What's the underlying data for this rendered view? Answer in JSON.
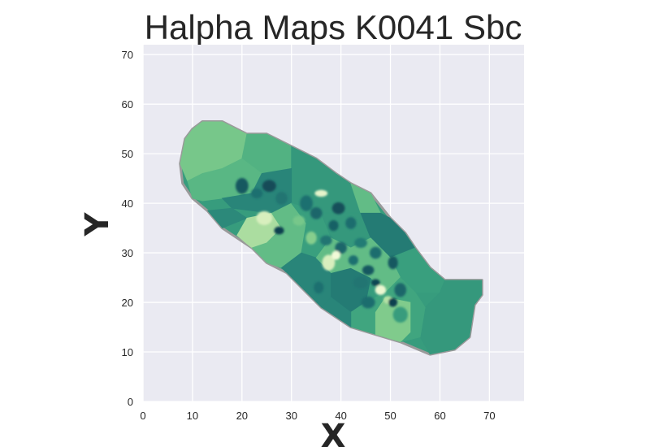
{
  "chart_data": {
    "type": "heatmap",
    "title": "Halpha Maps K0041 Sbc",
    "xlabel": "X",
    "ylabel": "Y",
    "xlim": [
      0,
      77
    ],
    "ylim": [
      0,
      72
    ],
    "xticks": [
      0,
      10,
      20,
      30,
      40,
      50,
      60,
      70
    ],
    "yticks": [
      0,
      10,
      20,
      30,
      40,
      50,
      60,
      70
    ],
    "grid": true,
    "colormap": "YlGn-like (light yellow-green to dark teal)",
    "colors": {
      "background": "#eaeaf2",
      "grid": "#ffffff",
      "outline": "#9a9a9a",
      "scale": [
        "#ffffe5",
        "#d1ecb6",
        "#8ad08e",
        "#5fbb85",
        "#3aa17e",
        "#2a8679",
        "#1d6e6f",
        "#0f3f4f"
      ]
    },
    "galaxy_outline": [
      [
        7.5,
        48
      ],
      [
        8.5,
        53
      ],
      [
        10,
        55
      ],
      [
        12,
        56.5
      ],
      [
        16,
        56.5
      ],
      [
        19,
        55
      ],
      [
        21,
        54
      ],
      [
        25,
        54
      ],
      [
        30,
        51.5
      ],
      [
        35,
        49
      ],
      [
        39,
        46
      ],
      [
        42,
        44
      ],
      [
        46,
        42
      ],
      [
        50,
        37
      ],
      [
        53,
        34
      ],
      [
        55,
        31
      ],
      [
        58,
        27
      ],
      [
        61,
        24.5
      ],
      [
        68.5,
        24.5
      ],
      [
        68.5,
        21.5
      ],
      [
        67,
        19.5
      ],
      [
        66,
        13
      ],
      [
        63,
        10.5
      ],
      [
        58,
        9.5
      ],
      [
        52,
        12
      ],
      [
        47,
        13.5
      ],
      [
        42,
        15
      ],
      [
        36,
        19
      ],
      [
        33,
        22
      ],
      [
        29,
        26
      ],
      [
        25,
        28
      ],
      [
        22,
        31
      ],
      [
        16,
        35
      ],
      [
        13,
        38.5
      ],
      [
        10,
        41
      ],
      [
        8,
        44
      ]
    ],
    "regions": [
      {
        "value": 0.35,
        "points": [
          [
            7.5,
            48
          ],
          [
            8.5,
            53
          ],
          [
            10,
            55
          ],
          [
            12,
            56.5
          ],
          [
            16,
            56.5
          ],
          [
            19,
            55
          ],
          [
            21,
            54
          ],
          [
            20,
            49
          ],
          [
            16,
            47
          ],
          [
            12,
            46
          ],
          [
            9,
            44.5
          ]
        ]
      },
      {
        "value": 0.48,
        "points": [
          [
            21,
            54
          ],
          [
            25,
            54
          ],
          [
            30,
            51.5
          ],
          [
            30,
            47
          ],
          [
            24,
            46
          ],
          [
            20,
            49
          ]
        ]
      },
      {
        "value": 0.62,
        "points": [
          [
            30,
            51.5
          ],
          [
            35,
            49
          ],
          [
            39,
            46
          ],
          [
            42,
            44
          ],
          [
            44,
            38
          ],
          [
            36,
            38
          ],
          [
            30,
            40
          ],
          [
            30,
            47
          ]
        ]
      },
      {
        "value": 0.45,
        "points": [
          [
            9,
            44.5
          ],
          [
            12,
            46
          ],
          [
            16,
            47
          ],
          [
            20,
            49
          ],
          [
            24,
            46
          ],
          [
            22,
            42
          ],
          [
            16,
            41
          ],
          [
            12,
            40.5
          ],
          [
            10,
            41
          ]
        ]
      },
      {
        "value": 0.72,
        "points": [
          [
            16,
            41
          ],
          [
            22,
            42
          ],
          [
            24,
            46
          ],
          [
            30,
            47
          ],
          [
            30,
            40
          ],
          [
            26,
            38
          ],
          [
            18,
            39
          ]
        ]
      },
      {
        "value": 0.7,
        "points": [
          [
            13,
            38.5
          ],
          [
            18,
            39
          ],
          [
            21,
            37
          ],
          [
            16,
            35
          ]
        ]
      },
      {
        "value": 0.22,
        "points": [
          [
            21,
            37
          ],
          [
            26,
            38
          ],
          [
            28,
            35
          ],
          [
            25,
            32
          ],
          [
            22,
            31
          ],
          [
            19,
            33.5
          ]
        ]
      },
      {
        "value": 0.42,
        "points": [
          [
            26,
            38
          ],
          [
            30,
            40
          ],
          [
            33,
            36
          ],
          [
            32,
            30
          ],
          [
            28,
            27
          ],
          [
            25,
            28
          ],
          [
            22,
            31
          ],
          [
            25,
            32
          ],
          [
            28,
            35
          ]
        ]
      },
      {
        "value": 0.58,
        "points": [
          [
            30,
            40
          ],
          [
            36,
            38
          ],
          [
            38,
            33
          ],
          [
            35,
            29
          ],
          [
            32,
            30
          ],
          [
            33,
            36
          ]
        ]
      },
      {
        "value": 0.62,
        "points": [
          [
            36,
            38
          ],
          [
            44,
            38
          ],
          [
            46,
            33
          ],
          [
            42,
            31
          ],
          [
            38,
            33
          ]
        ]
      },
      {
        "value": 0.42,
        "points": [
          [
            42,
            44
          ],
          [
            46,
            42
          ],
          [
            48,
            38
          ],
          [
            44,
            38
          ]
        ]
      },
      {
        "value": 0.78,
        "points": [
          [
            44,
            38
          ],
          [
            48,
            38
          ],
          [
            50,
            37
          ],
          [
            53,
            34
          ],
          [
            55,
            31
          ],
          [
            50,
            29
          ],
          [
            46,
            33
          ]
        ]
      },
      {
        "value": 0.58,
        "points": [
          [
            53,
            34
          ],
          [
            55,
            31
          ],
          [
            58,
            27
          ],
          [
            61,
            24.5
          ],
          [
            60,
            22
          ],
          [
            55,
            22
          ],
          [
            52,
            25
          ],
          [
            50,
            29
          ],
          [
            55,
            31
          ]
        ]
      },
      {
        "value": 0.62,
        "points": [
          [
            61,
            24.5
          ],
          [
            68.5,
            24.5
          ],
          [
            68.5,
            21.5
          ],
          [
            67,
            19.5
          ],
          [
            66,
            13
          ],
          [
            63,
            10.5
          ],
          [
            58,
            9.5
          ],
          [
            56,
            13
          ],
          [
            57,
            19
          ],
          [
            60,
            22
          ]
        ]
      },
      {
        "value": 0.72,
        "points": [
          [
            32,
            30
          ],
          [
            35,
            29
          ],
          [
            38,
            26
          ],
          [
            38,
            21
          ],
          [
            36,
            19
          ],
          [
            33,
            22
          ],
          [
            29,
            26
          ],
          [
            28,
            27
          ]
        ]
      },
      {
        "value": 0.78,
        "points": [
          [
            38,
            26
          ],
          [
            42,
            27
          ],
          [
            46,
            25
          ],
          [
            45,
            20
          ],
          [
            42,
            18
          ],
          [
            38,
            21
          ]
        ]
      },
      {
        "value": 0.42,
        "points": [
          [
            38,
            33
          ],
          [
            42,
            31
          ],
          [
            46,
            33
          ],
          [
            50,
            29
          ],
          [
            52,
            25
          ],
          [
            49,
            22
          ],
          [
            46,
            25
          ],
          [
            42,
            27
          ],
          [
            38,
            26
          ],
          [
            35,
            29
          ]
        ]
      },
      {
        "value": 0.55,
        "points": [
          [
            42,
            15
          ],
          [
            47,
            13.5
          ],
          [
            52,
            12
          ],
          [
            56,
            13
          ],
          [
            57,
            19
          ],
          [
            55,
            22
          ],
          [
            52,
            25
          ],
          [
            49,
            22
          ],
          [
            45,
            20
          ],
          [
            42,
            18
          ]
        ]
      },
      {
        "value": 0.32,
        "points": [
          [
            47,
            13.5
          ],
          [
            52,
            12
          ],
          [
            54,
            14
          ],
          [
            54,
            20
          ],
          [
            49,
            21
          ],
          [
            47,
            18
          ]
        ]
      },
      {
        "value": 0.72,
        "points": [
          [
            36,
            19
          ],
          [
            38,
            21
          ],
          [
            42,
            18
          ],
          [
            42,
            15
          ],
          [
            39,
            16.5
          ]
        ]
      }
    ],
    "blobs": [
      {
        "x": 20,
        "y": 43.5,
        "rx": 1.3,
        "ry": 1.6,
        "value": 0.92
      },
      {
        "x": 23,
        "y": 42,
        "rx": 1.2,
        "ry": 1.0,
        "value": 0.85
      },
      {
        "x": 25.5,
        "y": 43.5,
        "rx": 1.4,
        "ry": 1.2,
        "value": 0.96
      },
      {
        "x": 28,
        "y": 41,
        "rx": 1.2,
        "ry": 1.3,
        "value": 0.82
      },
      {
        "x": 27.5,
        "y": 34.5,
        "rx": 1.0,
        "ry": 0.8,
        "value": 1.0
      },
      {
        "x": 24.5,
        "y": 37,
        "rx": 1.6,
        "ry": 1.4,
        "value": 0.12
      },
      {
        "x": 33,
        "y": 40,
        "rx": 1.3,
        "ry": 1.6,
        "value": 0.85
      },
      {
        "x": 31.5,
        "y": 36.5,
        "rx": 1.2,
        "ry": 1.0,
        "value": 0.35
      },
      {
        "x": 35,
        "y": 38,
        "rx": 1.2,
        "ry": 1.2,
        "value": 0.88
      },
      {
        "x": 36,
        "y": 42,
        "rx": 1.3,
        "ry": 0.7,
        "value": 0.08
      },
      {
        "x": 38.5,
        "y": 35.5,
        "rx": 1.0,
        "ry": 1.1,
        "value": 0.9
      },
      {
        "x": 39.5,
        "y": 39,
        "rx": 1.3,
        "ry": 1.2,
        "value": 0.95
      },
      {
        "x": 42,
        "y": 36,
        "rx": 1.1,
        "ry": 1.2,
        "value": 0.86
      },
      {
        "x": 37,
        "y": 32.5,
        "rx": 1.2,
        "ry": 1.0,
        "value": 0.82
      },
      {
        "x": 34,
        "y": 33,
        "rx": 1.1,
        "ry": 1.3,
        "value": 0.3
      },
      {
        "x": 40,
        "y": 31,
        "rx": 1.2,
        "ry": 1.2,
        "value": 0.88
      },
      {
        "x": 44,
        "y": 32,
        "rx": 1.3,
        "ry": 1.0,
        "value": 0.78
      },
      {
        "x": 47,
        "y": 30,
        "rx": 1.2,
        "ry": 1.2,
        "value": 0.86
      },
      {
        "x": 50.5,
        "y": 28,
        "rx": 1.0,
        "ry": 1.3,
        "value": 0.92
      },
      {
        "x": 37.5,
        "y": 28,
        "rx": 1.3,
        "ry": 1.6,
        "value": 0.12
      },
      {
        "x": 39,
        "y": 29.5,
        "rx": 0.9,
        "ry": 0.9,
        "value": 0.04
      },
      {
        "x": 42.5,
        "y": 28.5,
        "rx": 1.0,
        "ry": 1.0,
        "value": 0.85
      },
      {
        "x": 45.5,
        "y": 26.5,
        "rx": 1.2,
        "ry": 1.0,
        "value": 0.92
      },
      {
        "x": 44,
        "y": 24,
        "rx": 1.5,
        "ry": 1.2,
        "value": 0.82
      },
      {
        "x": 47,
        "y": 24,
        "rx": 0.9,
        "ry": 0.7,
        "value": 0.98
      },
      {
        "x": 48,
        "y": 22.5,
        "rx": 1.1,
        "ry": 1.0,
        "value": 0.06
      },
      {
        "x": 49.5,
        "y": 20.5,
        "rx": 0.9,
        "ry": 0.8,
        "value": 0.2
      },
      {
        "x": 50.5,
        "y": 20,
        "rx": 0.9,
        "ry": 0.9,
        "value": 1.0
      },
      {
        "x": 45.5,
        "y": 20,
        "rx": 1.4,
        "ry": 1.2,
        "value": 0.86
      },
      {
        "x": 52,
        "y": 22.5,
        "rx": 1.2,
        "ry": 1.4,
        "value": 0.88
      },
      {
        "x": 52,
        "y": 17.5,
        "rx": 1.5,
        "ry": 1.6,
        "value": 0.6
      },
      {
        "x": 35.5,
        "y": 23,
        "rx": 1.0,
        "ry": 1.2,
        "value": 0.85
      }
    ]
  }
}
